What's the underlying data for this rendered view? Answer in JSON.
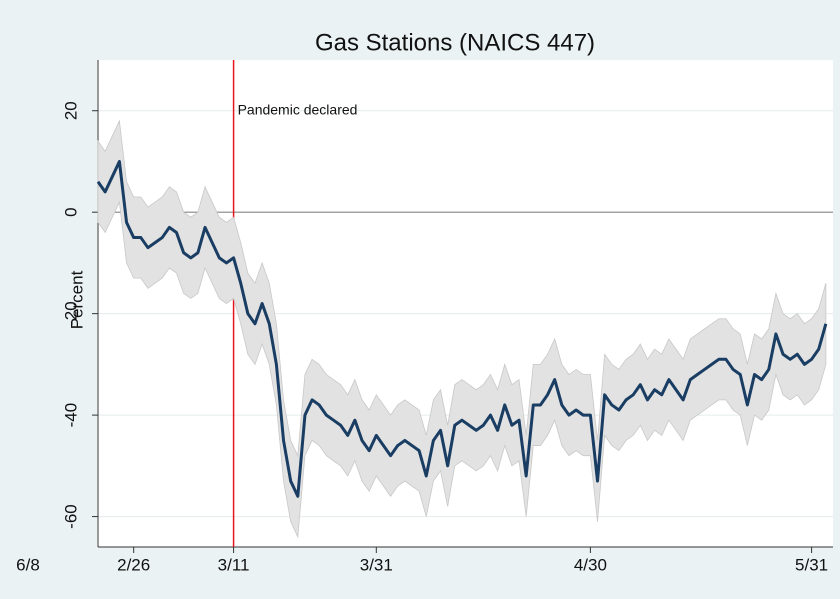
{
  "chart_data": {
    "type": "line",
    "title": "Gas Stations (NAICS 447)",
    "y_label": "Percent",
    "x": [
      52,
      53,
      54,
      55,
      56,
      57,
      58,
      59,
      60,
      61,
      62,
      63,
      64,
      65,
      66,
      67,
      68,
      69,
      70,
      71,
      72,
      73,
      74,
      75,
      76,
      77,
      78,
      79,
      80,
      81,
      82,
      83,
      84,
      85,
      86,
      87,
      88,
      89,
      90,
      91,
      92,
      93,
      94,
      95,
      96,
      97,
      98,
      99,
      100,
      101,
      102,
      103,
      104,
      105,
      106,
      107,
      108,
      109,
      110,
      111,
      112,
      113,
      114,
      115,
      116,
      117,
      118,
      119,
      120,
      121,
      122,
      123,
      124,
      125,
      126,
      127,
      128,
      129,
      130,
      131,
      132,
      133,
      134,
      135,
      136,
      137,
      138,
      139,
      140,
      141,
      142,
      143,
      144,
      145,
      146,
      147,
      148,
      149,
      150,
      151,
      152,
      153,
      154
    ],
    "series": [
      {
        "name": "Percent",
        "color": "#1a3d63",
        "values": [
          6,
          4,
          7,
          10,
          -2,
          -5,
          -5,
          -7,
          -6,
          -5,
          -3,
          -4,
          -8,
          -9,
          -8,
          -3,
          -6,
          -9,
          -10,
          -9,
          -14,
          -20,
          -22,
          -18,
          -22,
          -30,
          -45,
          -53,
          -56,
          -40,
          -37,
          -38,
          -40,
          -41,
          -42,
          -44,
          -41,
          -45,
          -47,
          -44,
          -46,
          -48,
          -46,
          -45,
          -46,
          -47,
          -52,
          -45,
          -43,
          -50,
          -42,
          -41,
          -42,
          -43,
          -42,
          -40,
          -43,
          -38,
          -42,
          -41,
          -52,
          -38,
          -38,
          -36,
          -33,
          -38,
          -40,
          -39,
          -40,
          -40,
          -53,
          -36,
          -38,
          -39,
          -37,
          -36,
          -34,
          -37,
          -35,
          -36,
          -33,
          -35,
          -37,
          -33,
          -32,
          -31,
          -30,
          -29,
          -29,
          -31,
          -32,
          -38,
          -32,
          -33,
          -31,
          -24,
          -28,
          -29,
          -28,
          -30,
          -29,
          -27,
          -22
        ]
      }
    ],
    "ci_halfwidth": 8,
    "band_color": "#e2e2e2",
    "xlim": [
      52,
      155
    ],
    "xticks": [
      {
        "value": 57,
        "label": "2/26"
      },
      {
        "value": 71,
        "label": "3/11"
      },
      {
        "value": 91,
        "label": "3/31"
      },
      {
        "value": 121,
        "label": "4/30"
      },
      {
        "value": 152,
        "label": "5/31"
      }
    ],
    "ylim": [
      -66,
      30
    ],
    "yticks": [
      20,
      0,
      -20,
      -40,
      -60
    ],
    "grid": true,
    "zero_line": 0,
    "annotations": [
      {
        "text": "Pandemic declared",
        "x": 71,
        "y": 20,
        "color": "#e8141c"
      }
    ],
    "extra_text": "6/8"
  }
}
